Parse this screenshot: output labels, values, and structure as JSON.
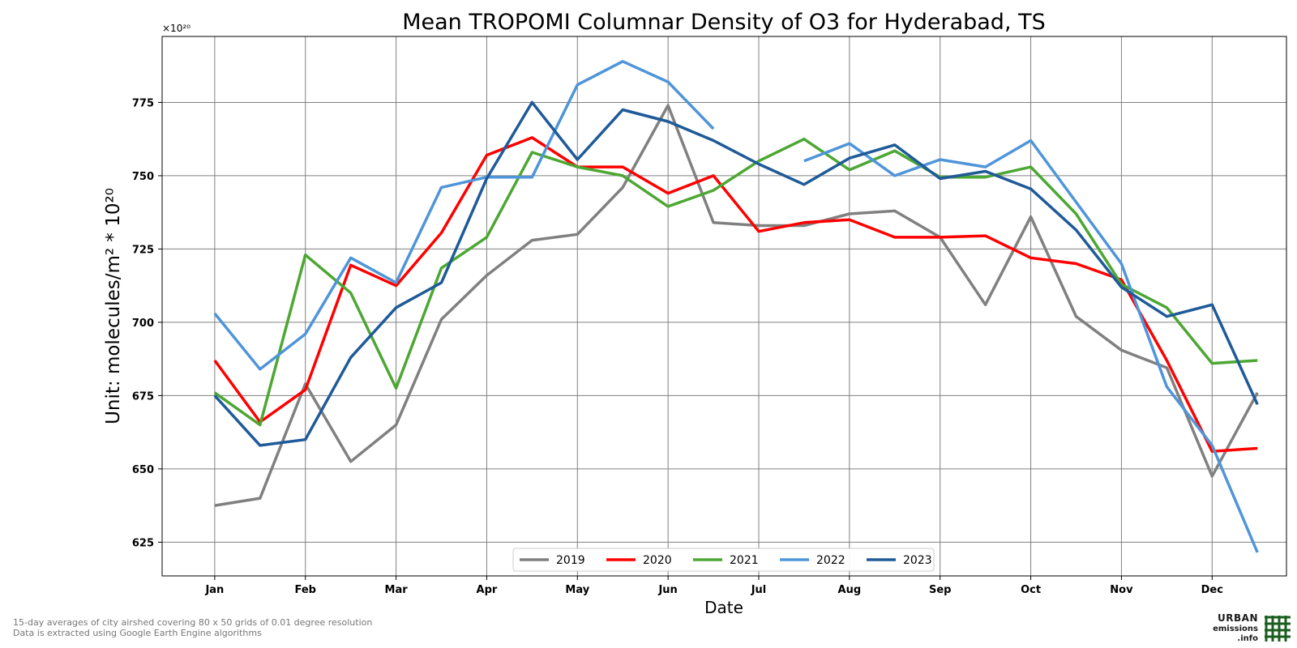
{
  "chart_data": {
    "type": "line",
    "title": "Mean TROPOMI Columnar Density of O3 for Hyderabad, TS",
    "xlabel": "Date",
    "ylabel": "Unit: molecules/m² * 10²⁰",
    "offset_text": "×10²⁰",
    "categories": [
      "Jan",
      "Feb",
      "Mar",
      "Apr",
      "May",
      "Jun",
      "Jul",
      "Aug",
      "Sep",
      "Oct",
      "Nov",
      "Dec"
    ],
    "y_ticks": [
      625,
      650,
      675,
      700,
      725,
      750,
      775
    ],
    "ylim": [
      613.5,
      797.5
    ],
    "xlim": [
      0.42,
      12.82
    ],
    "grid": true,
    "legend_position": "lower-center",
    "x": [
      1,
      1.5,
      2,
      2.5,
      3,
      3.5,
      4,
      4.5,
      5,
      5.5,
      6,
      6.5,
      7,
      7.5,
      8,
      8.5,
      9,
      9.5,
      10,
      10.5,
      11,
      11.5,
      12,
      12.5
    ],
    "series": [
      {
        "name": "2019",
        "color": "#808080",
        "values": [
          637.5,
          640,
          679,
          652.5,
          665,
          701,
          716,
          728,
          730,
          746,
          774,
          734,
          733,
          733,
          737,
          738,
          729,
          706,
          736,
          702,
          690.5,
          684.5,
          647.5,
          676
        ]
      },
      {
        "name": "2020",
        "color": "#ff0000",
        "values": [
          687,
          666,
          677,
          719.5,
          712.5,
          730.5,
          757,
          763,
          753,
          753,
          744,
          750,
          731,
          734,
          735,
          729,
          729,
          729.5,
          722,
          720,
          714.5,
          687,
          656,
          657
        ]
      },
      {
        "name": "2021",
        "color": "#4ca733",
        "values": [
          676,
          665,
          723,
          710,
          677.5,
          718.5,
          729,
          758,
          753,
          750,
          739.5,
          745,
          755,
          762.5,
          752,
          758.5,
          749.5,
          749.5,
          753,
          737,
          713,
          705,
          686,
          687
        ]
      },
      {
        "name": "2022",
        "color": "#4f95d9",
        "values": [
          703,
          684,
          696,
          722,
          713.5,
          746,
          749.5,
          749.5,
          781,
          789,
          782,
          766,
          null,
          755,
          761,
          750,
          755.5,
          753,
          762,
          741,
          720,
          678,
          658,
          621.5
        ]
      },
      {
        "name": "2023",
        "color": "#1f5a99",
        "values": [
          675,
          658,
          660,
          688,
          705,
          713.5,
          749,
          775,
          755.5,
          772.5,
          768.5,
          762,
          754,
          747,
          756,
          760.5,
          749,
          751.5,
          745.5,
          731.5,
          712,
          702,
          706,
          672
        ]
      }
    ]
  },
  "footnote": {
    "line1": "15-day averages of city airshed covering 80 x 50 grids of 0.01 degree resolution",
    "line2": "Data is extracted using Google Earth Engine algorithms"
  },
  "logo": {
    "line1": "URBAN",
    "line2": "emissions",
    "line3": ".info",
    "color": "#1a5e1f"
  }
}
